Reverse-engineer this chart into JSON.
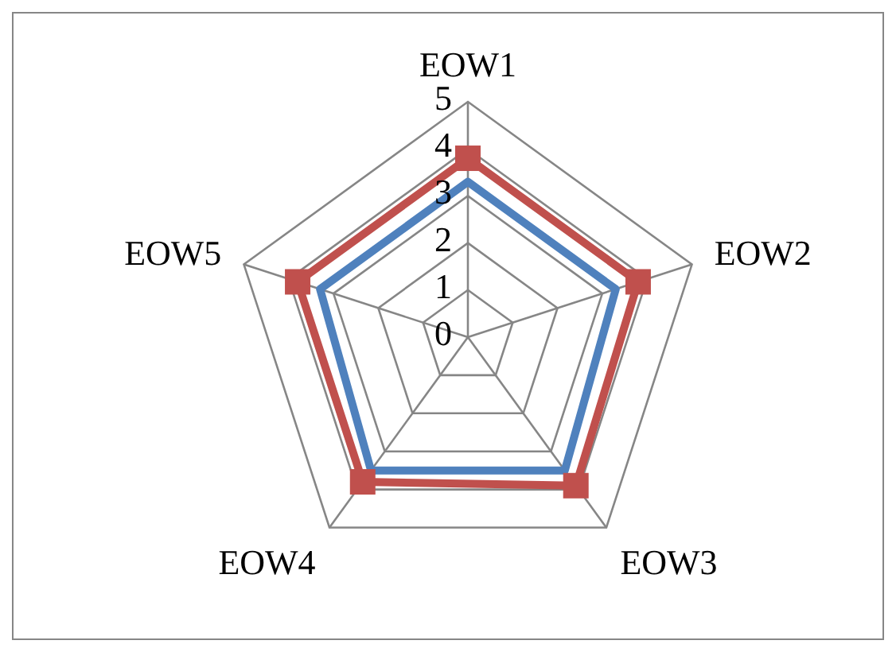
{
  "chart_data": {
    "type": "radar",
    "categories": [
      "EOW1",
      "EOW2",
      "EOW3",
      "EOW4",
      "EOW5"
    ],
    "series": [
      {
        "color": "#4f81bd",
        "values": [
          3.3,
          3.3,
          3.5,
          3.5,
          3.3
        ],
        "marker": "none"
      },
      {
        "color": "#c0504d",
        "values": [
          3.8,
          3.8,
          3.9,
          3.8,
          3.8
        ],
        "marker": "square"
      }
    ],
    "ylim": [
      0,
      5
    ],
    "yticks": [
      0,
      1,
      2,
      3,
      4,
      5
    ],
    "grid": true
  }
}
